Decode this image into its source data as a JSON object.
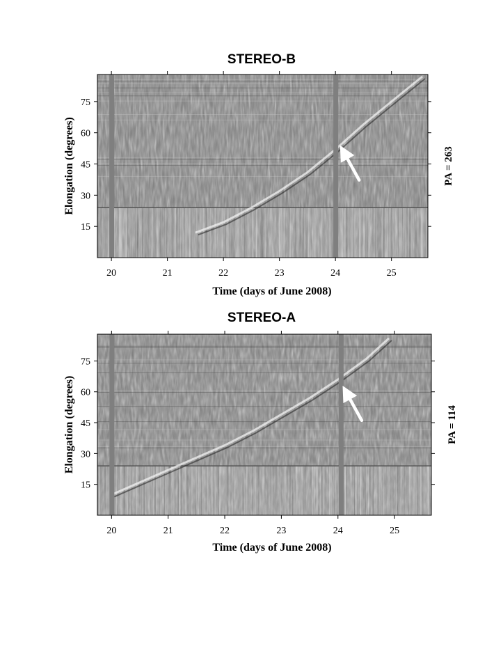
{
  "chart_data": [
    {
      "type": "heatmap",
      "title": "STEREO-B",
      "xlabel": "Time (days of June 2008)",
      "ylabel": "Elongation (degrees)",
      "right_label": "PA = 263",
      "xlim": [
        19.75,
        25.65
      ],
      "ylim": [
        0,
        88
      ],
      "xticks": [
        20,
        21,
        22,
        23,
        24,
        25
      ],
      "xtick_labels": [
        "20",
        "21",
        "22",
        "23",
        "24",
        "25"
      ],
      "yticks": [
        15,
        30,
        45,
        60,
        75
      ],
      "ytick_labels": [
        "15",
        "30",
        "45",
        "60",
        "75"
      ],
      "colormap": "grayscale",
      "instrument_boundary_deg": 24,
      "data_gaps_day": [
        20.0,
        24.0
      ],
      "bright_track": [
        {
          "x": 21.5,
          "y": 12
        },
        {
          "x": 22.0,
          "y": 17
        },
        {
          "x": 22.5,
          "y": 24
        },
        {
          "x": 23.0,
          "y": 32
        },
        {
          "x": 23.5,
          "y": 41
        },
        {
          "x": 24.0,
          "y": 52
        },
        {
          "x": 24.5,
          "y": 64
        },
        {
          "x": 25.0,
          "y": 75
        },
        {
          "x": 25.55,
          "y": 87
        }
      ],
      "arrow_annotation": {
        "x": 24.1,
        "y": 54,
        "color": "#ffffff"
      }
    },
    {
      "type": "heatmap",
      "title": "STEREO-A",
      "xlabel": "Time (days of June 2008)",
      "ylabel": "Elongation (degrees)",
      "right_label": "PA = 114",
      "xlim": [
        19.75,
        25.65
      ],
      "ylim": [
        0,
        88
      ],
      "xticks": [
        20,
        21,
        22,
        23,
        24,
        25
      ],
      "xtick_labels": [
        "20",
        "21",
        "22",
        "23",
        "24",
        "25"
      ],
      "yticks": [
        15,
        30,
        45,
        60,
        75
      ],
      "ytick_labels": [
        "15",
        "30",
        "45",
        "60",
        "75"
      ],
      "colormap": "grayscale",
      "instrument_boundary_deg": 24,
      "data_gaps_day": [
        20.0,
        24.05
      ],
      "bright_track": [
        {
          "x": 20.0,
          "y": 10
        },
        {
          "x": 20.5,
          "y": 16
        },
        {
          "x": 21.0,
          "y": 22
        },
        {
          "x": 21.5,
          "y": 28
        },
        {
          "x": 22.0,
          "y": 34
        },
        {
          "x": 22.5,
          "y": 41
        },
        {
          "x": 23.0,
          "y": 49
        },
        {
          "x": 23.5,
          "y": 57
        },
        {
          "x": 24.0,
          "y": 66
        },
        {
          "x": 24.5,
          "y": 76
        },
        {
          "x": 24.9,
          "y": 86
        }
      ],
      "arrow_annotation": {
        "x": 24.1,
        "y": 63,
        "color": "#ffffff"
      }
    }
  ]
}
